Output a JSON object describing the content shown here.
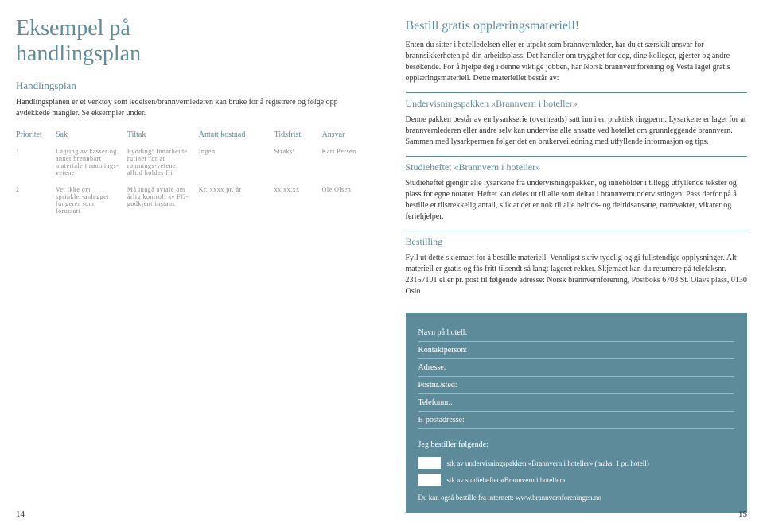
{
  "colors": {
    "accent": "#5e8b99",
    "text": "#333333",
    "muted": "#888888",
    "formBg": "#5e8b99",
    "formText": "#ffffff"
  },
  "left": {
    "title_line1": "Eksempel på",
    "title_line2": "handlingsplan",
    "subhead": "Handlingsplan",
    "intro": "Handlingsplanen er et verktøy som ledelsen/brannvernlederen kan bruke for å registrere og følge opp avdekkede mangler. Se eksempler under.",
    "table": {
      "headers": {
        "prioritet": "Prioritet",
        "sak": "Sak",
        "tiltak": "Tiltak",
        "kostnad": "Antatt kostnad",
        "tidsfrist": "Tidsfrist",
        "ansvar": "Ansvar"
      },
      "rows": [
        {
          "prioritet": "1",
          "sak": "Lagring av kasser og annet brennbart materiale i rømnings-veiene",
          "tiltak": "Rydding! Innarbeide rutiner for at rømnings-veiene alltid holdes fri",
          "kostnad": "Ingen",
          "tidsfrist": "Straks!",
          "ansvar": "Kari Persen"
        },
        {
          "prioritet": "2",
          "sak": "Vet ikke om sprinkler-anlegget fungerer som forutsatt",
          "tiltak": "Må inngå avtale om årlig kontroll av FG-godkjent instans",
          "kostnad": "Kr. xxxx pr. år",
          "tidsfrist": "xx.xx.xx",
          "ansvar": "Ole Olsen"
        }
      ]
    },
    "pageNum": "14"
  },
  "right": {
    "heading": "Bestill gratis opplæringsmateriell!",
    "intro": "Enten du sitter i hotelledelsen eller er utpekt som brannvernleder, har du et særskilt ansvar for brannsikkerheten på din arbeidsplass. Det handler om trygghet for deg, dine kolleger, gjester og andre besøkende. For å hjelpe deg i denne viktige jobben, har Norsk brannvernforening og Vesta laget gratis opplæringsmateriell. Dette materiellet består av:",
    "sec1_title": "Undervisningspakken «Brannvern i hoteller»",
    "sec1_body": "Denne pakken består av en lysarkserie (overheads) satt inn i en praktisk ringperm. Lysarkene er laget for at brannvernlederen eller andre selv kan undervise alle ansatte ved hotellet om grunnleggende brannvern. Sammen med lysarkpermen følger det en brukerveiledning med utfyllende informasjon og tips.",
    "sec2_title": "Studieheftet «Brannvern i hoteller»",
    "sec2_body": "Studieheftet gjengir alle lysarkene fra undervisningspakken, og inneholder i tillegg utfyllende tekster og plass for egne notater. Heftet kan deles ut til alle som deltar i brannvernundervisningen. Pass derfor på å bestille et tilstrekkelig antall, slik at det er nok til alle heltids- og deltidsansatte, nattevakter, vikarer og feriehjelper.",
    "sec3_title": "Bestilling",
    "sec3_body": "Fyll ut dette skjemaet for å bestille materiell. Vennligst skriv tydelig og gi fullstendige opplysninger. Alt materiell er gratis og fås fritt tilsendt så langt lageret rekker. Skjemaet kan du returnere på telefaksnr. 23157101 eller pr. post til følgende adresse: Norsk brannvernforening, Postboks 6703 St. Olavs plass, 0130 Oslo",
    "form": {
      "fields": {
        "hotel": "Navn på hotell:",
        "contact": "Kontaktperson:",
        "address": "Adresse:",
        "postal": "Postnr./sted:",
        "phone": "Telefonnr.:",
        "email": "E-postadresse:"
      },
      "orderHead": "Jeg bestiller følgende:",
      "order1": "stk av undervisningspakken «Brannvern i hoteller» (maks. 1 pr. hotell)",
      "order2": "stk av studieheftet «Brannvern i hoteller»",
      "footer": "Du kan også bestille fra internett: www.brannvernforeningen.no"
    },
    "pageNum": "15"
  }
}
